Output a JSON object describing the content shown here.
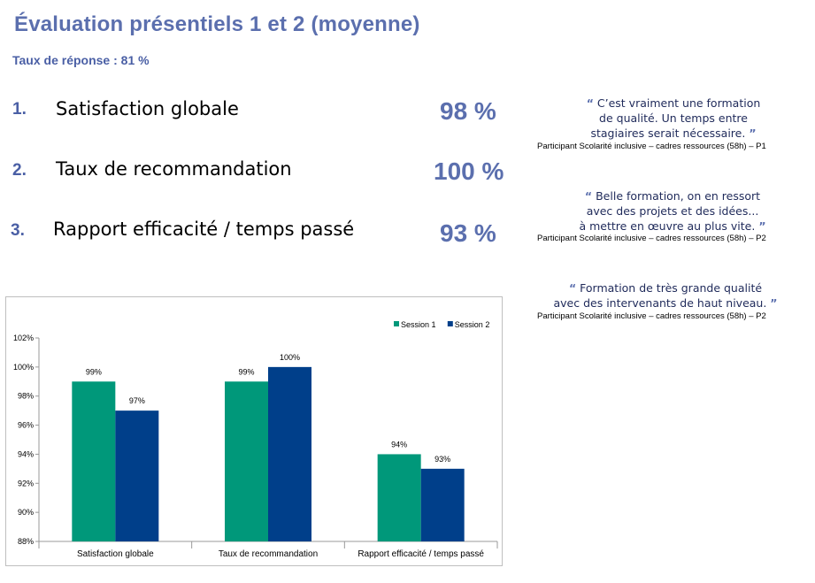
{
  "header": {
    "title": "Évaluation présentiels 1 et 2 (moyenne)",
    "response_rate": "Taux de réponse : 81 %"
  },
  "metrics": [
    {
      "number": "1.",
      "label": "Satisfaction globale",
      "value": "98 %"
    },
    {
      "number": "2.",
      "label": "Taux de recommandation",
      "value": "100 %"
    },
    {
      "number": "3.",
      "label": "Rapport efficacité / temps passé",
      "value": "93 %"
    }
  ],
  "quotes": [
    {
      "open": "“",
      "lines": [
        "C’est vraiment une formation",
        "de qualité. Un temps entre",
        "stagiaires serait nécessaire."
      ],
      "close": "”",
      "attribution": "Participant Scolarité inclusive – cadres ressources (58h) – P1"
    },
    {
      "open": "“",
      "lines": [
        "Belle formation, on en ressort",
        "avec des projets et des idées...",
        "à mettre en œuvre au plus vite."
      ],
      "close": "”",
      "attribution": "Participant Scolarité inclusive – cadres ressources (58h) – P2"
    },
    {
      "open": "“",
      "lines": [
        "Formation de très grande qualité",
        "avec des intervenants de haut niveau."
      ],
      "close": "”",
      "attribution": "Participant Scolarité inclusive – cadres ressources (58h) – P2"
    }
  ],
  "chart_data": {
    "type": "bar",
    "categories": [
      "Satisfaction globale",
      "Taux de recommandation",
      "Rapport efficacité / temps passé"
    ],
    "series": [
      {
        "name": "Session 1",
        "color": "#00987a",
        "values": [
          99,
          99,
          94
        ],
        "labels": [
          "99%",
          "99%",
          "94%"
        ]
      },
      {
        "name": "Session 2",
        "color": "#003f8a",
        "values": [
          97,
          100,
          93
        ],
        "labels": [
          "97%",
          "100%",
          "93%"
        ]
      }
    ],
    "yticks": [
      88,
      90,
      92,
      94,
      96,
      98,
      100,
      102
    ],
    "ytick_labels": [
      "88%",
      "90%",
      "92%",
      "94%",
      "96%",
      "98%",
      "100%",
      "102%"
    ],
    "ylim": [
      88,
      102
    ],
    "grid": false,
    "legend_position": "top-right"
  }
}
